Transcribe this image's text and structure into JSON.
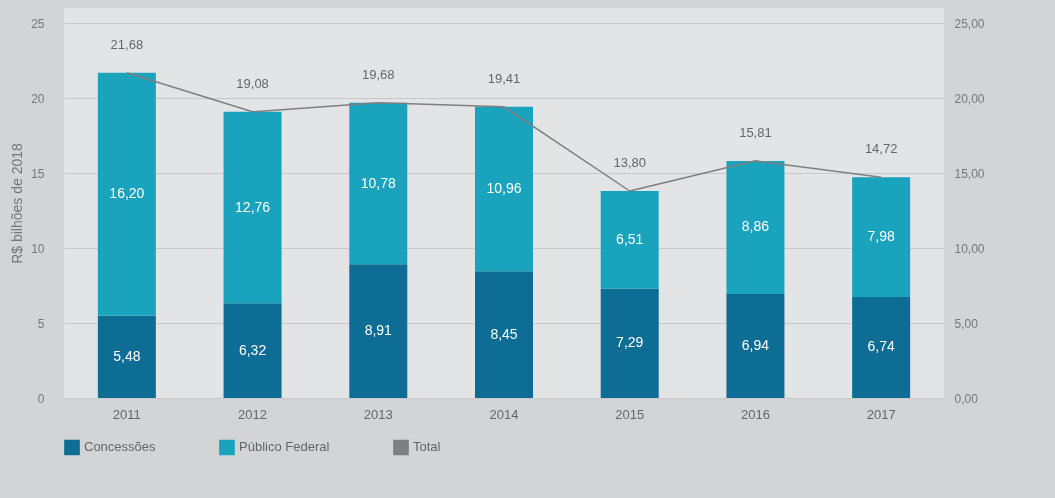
{
  "chart_data": {
    "type": "bar",
    "stacked": true,
    "ylabel": "R$ bilhões de 2018",
    "categories": [
      "2011",
      "2012",
      "2013",
      "2014",
      "2015",
      "2016",
      "2017"
    ],
    "series": [
      {
        "name": "Concessões",
        "color": "#0e6d95",
        "values": [
          5.48,
          6.32,
          8.91,
          8.45,
          7.29,
          6.94,
          6.74
        ],
        "value_labels": [
          "5,48",
          "6,32",
          "8,91",
          "8,45",
          "7,29",
          "6,94",
          "6,74"
        ]
      },
      {
        "name": "Público Federal",
        "color": "#1aa3bd",
        "values": [
          16.2,
          12.76,
          10.78,
          10.96,
          6.51,
          8.86,
          7.98
        ],
        "value_labels": [
          "16,20",
          "12,76",
          "10,78",
          "10,96",
          "6,51",
          "8,86",
          "7,98"
        ]
      },
      {
        "name": "Total",
        "type": "line",
        "axis": "y2",
        "color": "#7f7f7f",
        "values": [
          21.68,
          19.08,
          19.68,
          19.41,
          13.8,
          15.81,
          14.72
        ],
        "value_labels": [
          "21,68",
          "19,08",
          "19,68",
          "19,41",
          "13,80",
          "15,81",
          "14,72"
        ]
      }
    ],
    "ylim": [
      0,
      26
    ],
    "yticks": [
      0,
      5,
      10,
      15,
      20,
      25
    ],
    "y2lim": [
      0,
      26
    ],
    "y2ticks": [
      {
        "value": 0,
        "label": "0,00"
      },
      {
        "value": 5,
        "label": "5,00"
      },
      {
        "value": 10,
        "label": "10,00"
      },
      {
        "value": 15,
        "label": "15,00"
      },
      {
        "value": 20,
        "label": "20,00"
      },
      {
        "value": 25,
        "label": "25,00"
      }
    ],
    "grid": "y",
    "legend": "bottom"
  }
}
